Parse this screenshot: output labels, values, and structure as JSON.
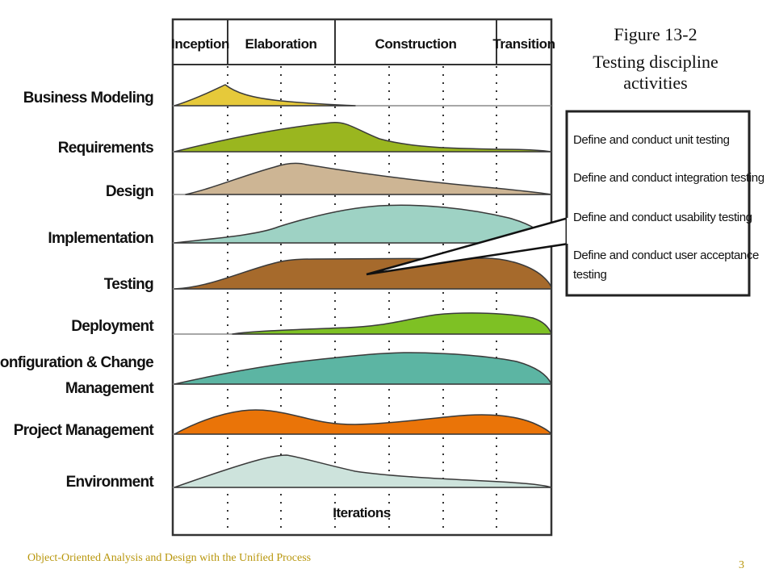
{
  "figure": {
    "number": "Figure 13-2",
    "title_line1": "Testing discipline",
    "title_line2": "activities"
  },
  "phases": [
    "Inception",
    "Elaboration",
    "Construction",
    "Transition"
  ],
  "disciplines": [
    {
      "label": "Business Modeling",
      "color": "#e6c93a"
    },
    {
      "label": "Requirements",
      "color": "#9ab61f"
    },
    {
      "label": "Design",
      "color": "#cdb594"
    },
    {
      "label": "Implementation",
      "color": "#9ed2c4"
    },
    {
      "label": "Testing",
      "color": "#a66a2c",
      "highlighted": true
    },
    {
      "label": "Deployment",
      "color": "#7ec124"
    },
    {
      "label_line1": "Configuration & Change",
      "label_line2": "Management",
      "color": "#5cb5a3"
    },
    {
      "label": "Project Management",
      "color": "#ea7408"
    },
    {
      "label": "Environment",
      "color": "#cde3dc"
    }
  ],
  "iterations_label": "Iterations",
  "callout": {
    "items": [
      {
        "line1": "Define and conduct unit testing"
      },
      {
        "line1": "Define and conduct integration testing"
      },
      {
        "line1": "Define and conduct usability testing"
      },
      {
        "line1": "Define and conduct user acceptance",
        "line2": "testing"
      }
    ]
  },
  "footer": {
    "source": "Object-Oriented Analysis and Design with the Unified Process",
    "page": "3"
  }
}
